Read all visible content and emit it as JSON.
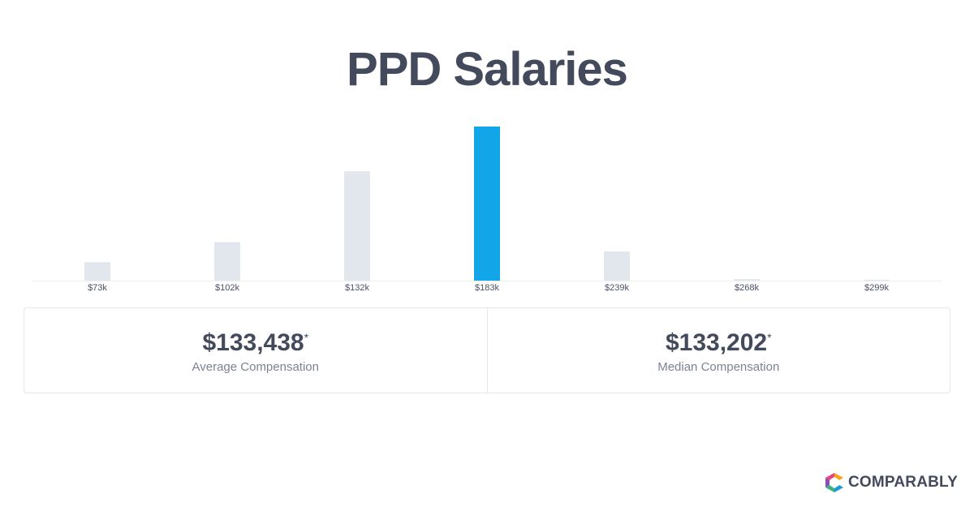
{
  "title": "PPD Salaries",
  "chart_data": {
    "type": "bar",
    "categories": [
      "$73k",
      "$102k",
      "$132k",
      "$183k",
      "$239k",
      "$268k",
      "$299k"
    ],
    "values": [
      12,
      25,
      71,
      100,
      19,
      1,
      0.5
    ],
    "highlight_index": 3,
    "ylim": [
      0,
      100
    ],
    "grid": false,
    "legend": "none",
    "colors": {
      "bar": "#e1e7ed",
      "highlight": "#12a5e8",
      "baseline": "#eef1f4"
    }
  },
  "stats": {
    "average": {
      "value": "$133,438",
      "asterisk": "*",
      "label": "Average Compensation"
    },
    "median": {
      "value": "$133,202",
      "asterisk": "*",
      "label": "Median Compensation"
    }
  },
  "brand": {
    "name": "COMPARABLY",
    "logo_colors": [
      "#f6a21c",
      "#e6477b",
      "#8e4fb5",
      "#39b37f",
      "#1c9ad6",
      "#434a5c"
    ]
  }
}
